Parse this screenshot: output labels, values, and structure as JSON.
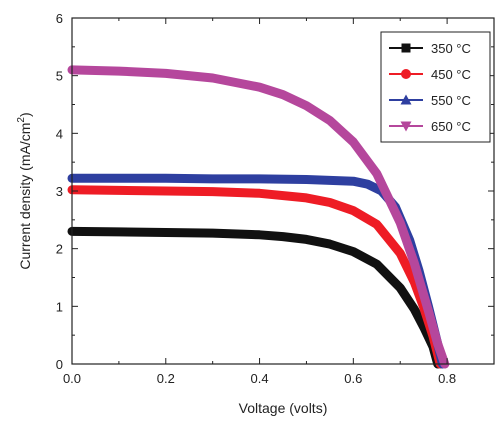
{
  "chart_data": {
    "type": "line",
    "xlabel": "Voltage (volts)",
    "ylabel": "Current density (mA/cm²)",
    "xlim": [
      0.0,
      0.9
    ],
    "ylim": [
      0,
      6
    ],
    "xticks": [
      "0.0",
      "0.2",
      "0.4",
      "0.6",
      "0.8"
    ],
    "yticks": [
      "0",
      "1",
      "2",
      "3",
      "4",
      "5",
      "6"
    ],
    "grid": false,
    "legend_position": "top-right",
    "series": [
      {
        "name": "350 °C",
        "color": "#111111",
        "marker": "square",
        "x": [
          0.0,
          0.1,
          0.2,
          0.3,
          0.4,
          0.45,
          0.5,
          0.55,
          0.6,
          0.65,
          0.7,
          0.73,
          0.75,
          0.77,
          0.78
        ],
        "y": [
          2.3,
          2.29,
          2.28,
          2.27,
          2.24,
          2.21,
          2.16,
          2.08,
          1.95,
          1.73,
          1.32,
          0.95,
          0.64,
          0.3,
          0.0
        ]
      },
      {
        "name": "450 °C",
        "color": "#ee1c25",
        "marker": "circle",
        "x": [
          0.0,
          0.1,
          0.2,
          0.3,
          0.4,
          0.5,
          0.55,
          0.6,
          0.65,
          0.7,
          0.73,
          0.75,
          0.77,
          0.785
        ],
        "y": [
          3.02,
          3.01,
          3.0,
          2.99,
          2.96,
          2.88,
          2.8,
          2.66,
          2.42,
          1.92,
          1.42,
          0.98,
          0.48,
          0.0
        ]
      },
      {
        "name": "550 °C",
        "color": "#2e3fa0",
        "marker": "triangle-up",
        "x": [
          0.0,
          0.1,
          0.2,
          0.3,
          0.4,
          0.5,
          0.6,
          0.63,
          0.66,
          0.69,
          0.72,
          0.74,
          0.76,
          0.78,
          0.79
        ],
        "y": [
          3.22,
          3.22,
          3.22,
          3.21,
          3.21,
          3.2,
          3.17,
          3.12,
          3.0,
          2.72,
          2.15,
          1.62,
          1.0,
          0.35,
          0.0
        ]
      },
      {
        "name": "650 °C",
        "color": "#b5479c",
        "marker": "triangle-down",
        "x": [
          0.0,
          0.1,
          0.2,
          0.3,
          0.4,
          0.45,
          0.5,
          0.55,
          0.6,
          0.65,
          0.7,
          0.73,
          0.76,
          0.78,
          0.795
        ],
        "y": [
          5.1,
          5.08,
          5.04,
          4.96,
          4.8,
          4.67,
          4.48,
          4.22,
          3.85,
          3.3,
          2.45,
          1.75,
          0.92,
          0.35,
          0.0
        ]
      }
    ]
  }
}
